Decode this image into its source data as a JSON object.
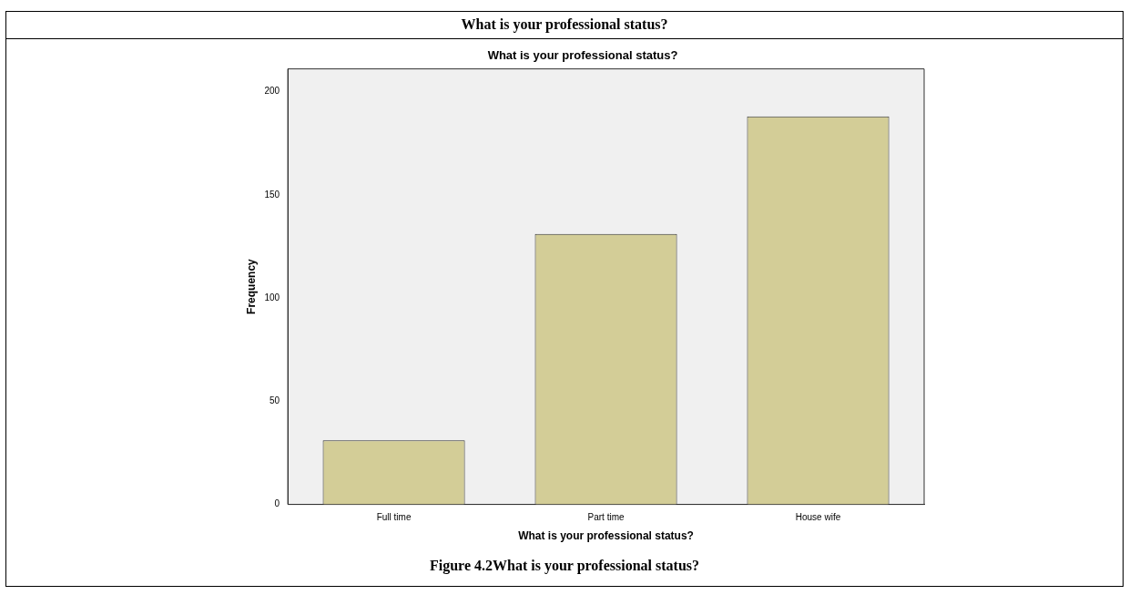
{
  "chart_data": {
    "type": "bar",
    "title": "What is your professional status?",
    "subtitle": "What is your professional status?",
    "xlabel": "What is your professional status?",
    "ylabel": "Frequency",
    "categories": [
      "Full time",
      "Part time",
      "House wife"
    ],
    "values": [
      31,
      131,
      188
    ],
    "color": "#d3cd97",
    "ylim": [
      0,
      211
    ],
    "yticks": [
      0,
      50,
      100,
      150,
      200
    ],
    "grid": false,
    "legend": false,
    "annotations": [
      "Figure 4.2What is your professional status?"
    ]
  }
}
